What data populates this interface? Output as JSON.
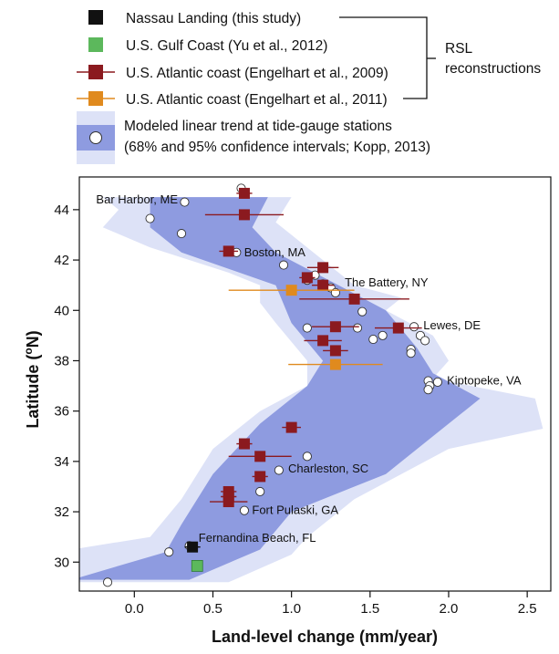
{
  "chart_data": {
    "type": "scatter",
    "xlabel": "Land-level change (mm/year)",
    "ylabel_main": "Latitude (",
    "ylabel_sup": "o",
    "ylabel_end": "N)",
    "xlim": [
      -0.35,
      2.65
    ],
    "ylim": [
      28.85,
      45.3
    ],
    "xticks": [
      "0.0",
      "0.5",
      "1.0",
      "1.5",
      "2.0",
      "2.5"
    ],
    "xtick_values": [
      0,
      0.5,
      1.0,
      1.5,
      2.0,
      2.5
    ],
    "yticks": [
      "30",
      "32",
      "34",
      "36",
      "38",
      "40",
      "42",
      "44"
    ],
    "ytick_values": [
      30,
      32,
      34,
      36,
      38,
      40,
      42,
      44
    ],
    "colors": {
      "band95": "#dde2f7",
      "band68": "#8e9be0",
      "nassau": "#111111",
      "gulf": "#5cb85c",
      "atlantic2009": "#8b1a1f",
      "atlantic2011": "#e08a1e"
    },
    "legend": {
      "nassau": "Nassau Landing (this study)",
      "gulf": "U.S. Gulf Coast (Yu et al., 2012)",
      "atlantic2009": "U.S. Atlantic coast (Engelhart et al., 2009)",
      "atlantic2011": "U.S. Atlantic coast (Engelhart et al., 2011)",
      "model_line1": "Modeled linear trend at tide-gauge stations",
      "model_line2": "(68% and 95% confidence intervals; Kopp, 2013)",
      "group_line1": "RSL",
      "group_line2": "reconstructions"
    },
    "band95": {
      "left": [
        [
          -0.4,
          29.2
        ],
        [
          -0.4,
          30.5
        ],
        [
          0.1,
          31.0
        ],
        [
          0.3,
          32.5
        ],
        [
          0.5,
          34.5
        ],
        [
          0.8,
          36.0
        ],
        [
          1.1,
          37.0
        ],
        [
          1.1,
          38.0
        ],
        [
          0.9,
          39.5
        ],
        [
          0.8,
          40.3
        ],
        [
          0.8,
          41.0
        ],
        [
          0.6,
          41.5
        ],
        [
          0.1,
          42.5
        ],
        [
          -0.2,
          43.3
        ],
        [
          -0.1,
          44.0
        ],
        [
          -0.2,
          44.5
        ]
      ],
      "right": [
        [
          0.6,
          29.2
        ],
        [
          1.0,
          30.3
        ],
        [
          1.1,
          31.0
        ],
        [
          1.4,
          32.5
        ],
        [
          2.0,
          34.5
        ],
        [
          2.6,
          35.3
        ],
        [
          2.55,
          36.5
        ],
        [
          1.9,
          37.3
        ],
        [
          2.0,
          38.0
        ],
        [
          1.9,
          39.0
        ],
        [
          1.6,
          40.0
        ],
        [
          1.7,
          40.5
        ],
        [
          1.4,
          41.0
        ],
        [
          1.2,
          42.0
        ],
        [
          0.9,
          43.5
        ],
        [
          1.0,
          44.5
        ]
      ]
    },
    "band68": {
      "left": [
        [
          -0.4,
          29.3
        ],
        [
          0.2,
          30.4
        ],
        [
          0.3,
          31.5
        ],
        [
          0.5,
          33.5
        ],
        [
          0.8,
          35.5
        ],
        [
          1.1,
          37.0
        ],
        [
          1.2,
          38.0
        ],
        [
          1.0,
          39.5
        ],
        [
          0.9,
          41.0
        ],
        [
          0.3,
          42.3
        ],
        [
          0.1,
          43.3
        ],
        [
          0.1,
          44.5
        ]
      ],
      "right": [
        [
          0.35,
          29.3
        ],
        [
          0.8,
          30.5
        ],
        [
          1.0,
          32.0
        ],
        [
          1.6,
          33.5
        ],
        [
          1.9,
          35.0
        ],
        [
          2.2,
          36.5
        ],
        [
          1.9,
          37.5
        ],
        [
          1.8,
          38.5
        ],
        [
          1.6,
          40.0
        ],
        [
          1.3,
          41.0
        ],
        [
          0.9,
          42.3
        ],
        [
          0.75,
          43.3
        ],
        [
          0.85,
          44.5
        ]
      ]
    },
    "stations": [
      {
        "x": 0.68,
        "y": 44.85
      },
      {
        "x": 0.32,
        "y": 44.3
      },
      {
        "x": 0.1,
        "y": 43.65
      },
      {
        "x": 0.3,
        "y": 43.05
      },
      {
        "x": 0.65,
        "y": 42.3
      },
      {
        "x": 0.95,
        "y": 41.8
      },
      {
        "x": 1.15,
        "y": 41.4
      },
      {
        "x": 1.1,
        "y": 41.2
      },
      {
        "x": 1.2,
        "y": 41.05
      },
      {
        "x": 1.25,
        "y": 40.9
      },
      {
        "x": 1.28,
        "y": 40.7
      },
      {
        "x": 1.45,
        "y": 39.95
      },
      {
        "x": 1.1,
        "y": 39.3
      },
      {
        "x": 1.42,
        "y": 39.3
      },
      {
        "x": 1.78,
        "y": 39.35
      },
      {
        "x": 1.82,
        "y": 39.0
      },
      {
        "x": 1.58,
        "y": 39.0
      },
      {
        "x": 1.85,
        "y": 38.8
      },
      {
        "x": 1.52,
        "y": 38.85
      },
      {
        "x": 1.76,
        "y": 38.45
      },
      {
        "x": 1.76,
        "y": 38.3
      },
      {
        "x": 1.87,
        "y": 37.2
      },
      {
        "x": 1.93,
        "y": 37.15
      },
      {
        "x": 1.88,
        "y": 37.0
      },
      {
        "x": 1.87,
        "y": 36.85
      },
      {
        "x": 1.1,
        "y": 34.2
      },
      {
        "x": 0.92,
        "y": 33.65
      },
      {
        "x": 0.8,
        "y": 32.8
      },
      {
        "x": 0.7,
        "y": 32.05
      },
      {
        "x": 0.35,
        "y": 30.65
      },
      {
        "x": 0.22,
        "y": 30.4
      },
      {
        "x": -0.17,
        "y": 29.2
      }
    ],
    "station_labels": [
      {
        "text": "Bar Harbor, ME",
        "x": 0.3,
        "y": 44.4,
        "anchor": "end"
      },
      {
        "text": "Boston, MA",
        "x": 0.67,
        "y": 42.3,
        "anchor": "start"
      },
      {
        "text": "The Battery, NY",
        "x": 1.31,
        "y": 41.1,
        "anchor": "start"
      },
      {
        "text": "Lewes, DE",
        "x": 1.81,
        "y": 39.4,
        "anchor": "start"
      },
      {
        "text": "Kiptopeke, VA",
        "x": 1.96,
        "y": 37.2,
        "anchor": "start"
      },
      {
        "text": "Charleston, SC",
        "x": 0.95,
        "y": 33.7,
        "anchor": "start"
      },
      {
        "text": "Fort Pulaski, GA",
        "x": 0.72,
        "y": 32.05,
        "anchor": "start"
      },
      {
        "text": "Fernandina Beach, FL",
        "x": 0.38,
        "y": 30.95,
        "anchor": "start"
      }
    ],
    "series": [
      {
        "key": "atlantic2009",
        "points": [
          {
            "x": 0.7,
            "y": 44.65,
            "xerr": 0.05
          },
          {
            "x": 0.7,
            "y": 43.8,
            "xerr": 0.25
          },
          {
            "x": 0.6,
            "y": 42.35,
            "xerr": 0.06
          },
          {
            "x": 1.2,
            "y": 41.7,
            "xerr": 0.1
          },
          {
            "x": 1.1,
            "y": 41.3,
            "xerr": 0.05
          },
          {
            "x": 1.2,
            "y": 41.0,
            "xerr": 0.07
          },
          {
            "x": 1.4,
            "y": 40.45,
            "xerr": 0.35
          },
          {
            "x": 1.28,
            "y": 39.35,
            "xerr": 0.15
          },
          {
            "x": 1.68,
            "y": 39.3,
            "xerr": 0.15
          },
          {
            "x": 1.2,
            "y": 38.8,
            "xerr": 0.12
          },
          {
            "x": 1.28,
            "y": 38.4,
            "xerr": 0.08
          },
          {
            "x": 1.0,
            "y": 35.35,
            "xerr": 0.06
          },
          {
            "x": 0.7,
            "y": 34.7,
            "xerr": 0.05
          },
          {
            "x": 0.8,
            "y": 34.2,
            "xerr": 0.2
          },
          {
            "x": 0.8,
            "y": 33.4,
            "xerr": 0.05
          },
          {
            "x": 0.6,
            "y": 32.8,
            "xerr": 0.05
          },
          {
            "x": 0.6,
            "y": 32.6,
            "xerr": 0.05
          },
          {
            "x": 0.6,
            "y": 32.4,
            "xerr": 0.12
          }
        ]
      },
      {
        "key": "atlantic2011",
        "points": [
          {
            "x": 1.0,
            "y": 40.8,
            "xerr": 0.4
          },
          {
            "x": 1.28,
            "y": 37.85,
            "xerr": 0.3
          }
        ]
      },
      {
        "key": "nassau",
        "points": [
          {
            "x": 0.37,
            "y": 30.6,
            "xerr": 0.05
          }
        ]
      },
      {
        "key": "gulf",
        "points": [
          {
            "x": 0.4,
            "y": 29.85,
            "xerr": 0.0
          }
        ]
      }
    ]
  }
}
